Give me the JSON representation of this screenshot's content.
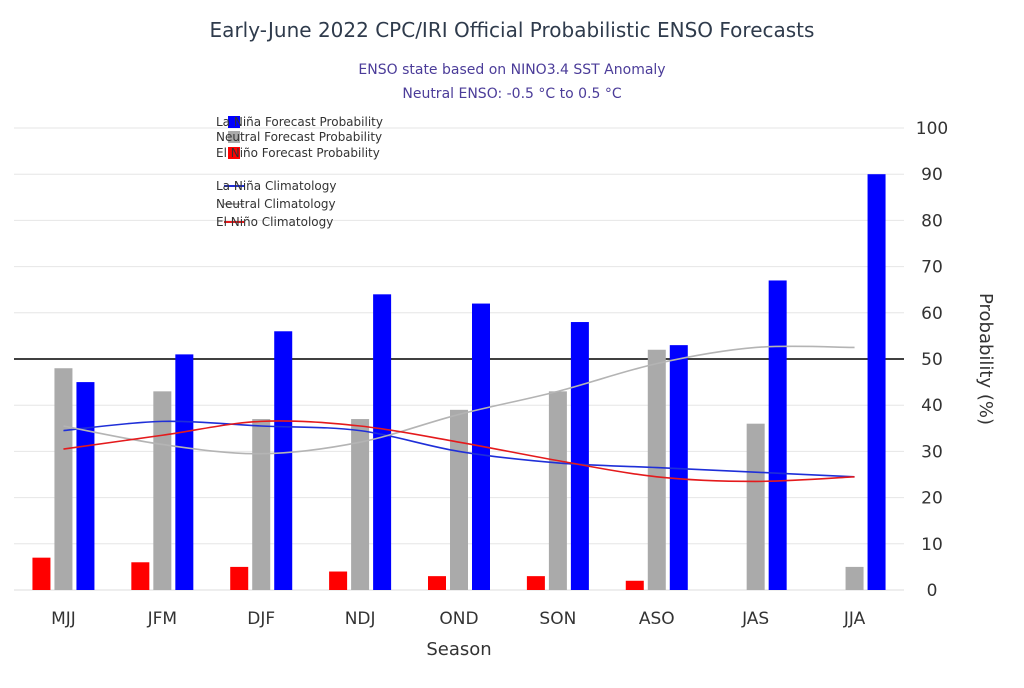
{
  "chart_data": {
    "type": "bar",
    "title": "Early-June 2022 CPC/IRI Official Probabilistic ENSO Forecasts",
    "subtitle_lines": [
      "ENSO state based on NINO3.4 SST Anomaly",
      "Neutral ENSO: -0.5 °C to 0.5 °C"
    ],
    "xlabel": "Season",
    "ylabel": "Probability (%)",
    "categories": [
      "JJA",
      "JAS",
      "ASO",
      "SON",
      "OND",
      "NDJ",
      "DJF",
      "JFM",
      "MJJ"
    ],
    "ylim": [
      0,
      100
    ],
    "yticks": [
      0,
      10,
      20,
      30,
      40,
      50,
      60,
      70,
      80,
      90,
      100
    ],
    "reference_line": 50,
    "grid": true,
    "legend_position": "top-left",
    "colors": {
      "la_nina": "#0000ff",
      "neutral": "#aaaaaa",
      "el_nino": "#ff0000",
      "la_nina_clim": "#1f2fd8",
      "neutral_clim": "#b4b4b4",
      "el_nino_clim": "#e41a1c"
    },
    "series": [
      {
        "name": "La Niña Forecast Probability",
        "kind": "bar",
        "color_key": "la_nina",
        "values": [
          90,
          67,
          53,
          58,
          62,
          64,
          56,
          51,
          45
        ]
      },
      {
        "name": "Neutral Forecast Probability",
        "kind": "bar",
        "color_key": "neutral",
        "values": [
          5,
          36,
          52,
          43,
          39,
          37,
          37,
          43,
          48
        ]
      },
      {
        "name": "El Niño Forecast Probability",
        "kind": "bar",
        "color_key": "el_nino",
        "values": [
          0,
          0,
          2,
          3,
          3,
          4,
          5,
          6,
          7
        ]
      },
      {
        "name": "La Niña Climatology",
        "kind": "line",
        "color_key": "la_nina_clim",
        "values": [
          24.5,
          25.5,
          26.5,
          27.5,
          30,
          34.5,
          35.5,
          36.5,
          34.5
        ]
      },
      {
        "name": "Neutral Climatology",
        "kind": "line",
        "color_key": "neutral_clim",
        "values": [
          52.5,
          52.5,
          49,
          43,
          38,
          32,
          29.5,
          31.5,
          35.5
        ]
      },
      {
        "name": "El Niño Climatology",
        "kind": "line",
        "color_key": "el_nino_clim",
        "values": [
          24.5,
          23.5,
          24.5,
          28,
          32,
          35.5,
          36.5,
          33.5,
          30.5
        ]
      }
    ]
  }
}
